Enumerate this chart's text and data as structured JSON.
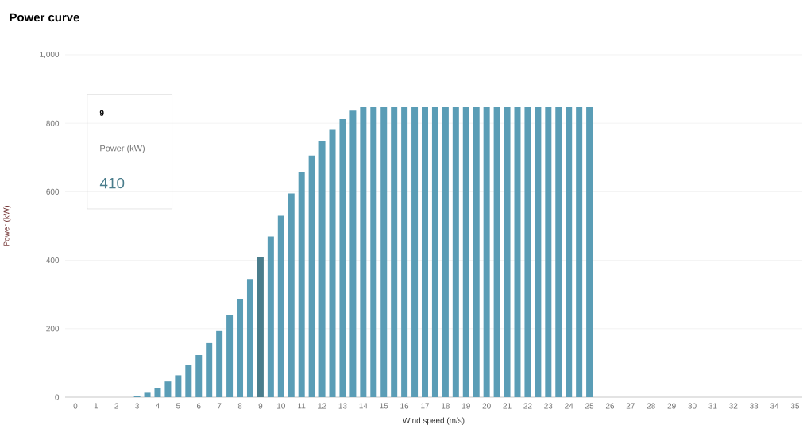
{
  "chart_data": {
    "type": "bar",
    "title": "Power curve",
    "xlabel": "Wind speed (m/s)",
    "ylabel": "Power (kW)",
    "categories": [
      "0",
      null,
      "1",
      null,
      "2",
      null,
      "3",
      null,
      "4",
      null,
      "5",
      null,
      "6",
      null,
      "7",
      null,
      "8",
      null,
      "9",
      null,
      "10",
      null,
      "11",
      null,
      "12",
      null,
      "13",
      null,
      "14",
      null,
      "15",
      null,
      "16",
      null,
      "17",
      null,
      "18",
      null,
      "19",
      null,
      "20",
      null,
      "21",
      null,
      "22",
      null,
      "23",
      null,
      "24",
      null,
      "25",
      null,
      "26",
      null,
      "27",
      null,
      "28",
      null,
      "29",
      null,
      "30",
      null,
      "31",
      null,
      "32",
      null,
      "33",
      null,
      "34",
      null,
      "35"
    ],
    "values": [
      0,
      0,
      0,
      0,
      0,
      0,
      4,
      13,
      27,
      46,
      64,
      94,
      123,
      158,
      193,
      241,
      287,
      345,
      410,
      470,
      530,
      595,
      658,
      706,
      748,
      781,
      812,
      837,
      847,
      847,
      847,
      847,
      847,
      847,
      847,
      847,
      847,
      847,
      847,
      847,
      847,
      847,
      847,
      847,
      847,
      847,
      847,
      847,
      847,
      847,
      847,
      0,
      0,
      0,
      0,
      0,
      0,
      0,
      0,
      0,
      0,
      0,
      0,
      0,
      0,
      0,
      0,
      0,
      0,
      0,
      0
    ],
    "colors": [
      "#5a9db6",
      "#5a9db6",
      "#5a9db6",
      "#5a9db6",
      "#5a9db6",
      "#5a9db6",
      "#5a9db6",
      "#5a9db6",
      "#5a9db6",
      "#5a9db6",
      "#5a9db6",
      "#5a9db6",
      "#5a9db6",
      "#5a9db6",
      "#5a9db6",
      "#5a9db6",
      "#5a9db6",
      "#5a9db6",
      "#4a7d8c",
      "#5a9db6",
      "#5a9db6",
      "#5a9db6",
      "#5a9db6",
      "#5a9db6",
      "#5a9db6",
      "#5a9db6",
      "#5a9db6",
      "#5a9db6",
      "#5a9db6",
      "#5a9db6",
      "#5a9db6",
      "#5a9db6",
      "#5a9db6",
      "#5a9db6",
      "#5a9db6",
      "#5a9db6",
      "#5a9db6",
      "#5a9db6",
      "#5a9db6",
      "#5a9db6",
      "#5a9db6",
      "#5a9db6",
      "#5a9db6",
      "#5a9db6",
      "#5a9db6",
      "#5a9db6",
      "#5a9db6",
      "#5a9db6",
      "#5a9db6",
      "#5a9db6",
      "#5a9db6",
      "#5a9db6",
      "#5a9db6",
      "#5a9db6",
      "#5a9db6",
      "#5a9db6",
      "#5a9db6",
      "#5a9db6",
      "#5a9db6",
      "#5a9db6",
      "#5a9db6",
      "#5a9db6",
      "#5a9db6",
      "#5a9db6",
      "#5a9db6",
      "#5a9db6",
      "#5a9db6",
      "#5a9db6",
      "#5a9db6",
      "#5a9db6",
      "#5a9db6"
    ],
    "ylim": [
      0,
      1000
    ],
    "yticks": [
      0,
      200,
      400,
      600,
      800,
      {
        "value": 1000,
        "label": "1,000"
      }
    ],
    "grid": "y",
    "annotations": [
      "9",
      "Power (kW)",
      "410"
    ]
  }
}
